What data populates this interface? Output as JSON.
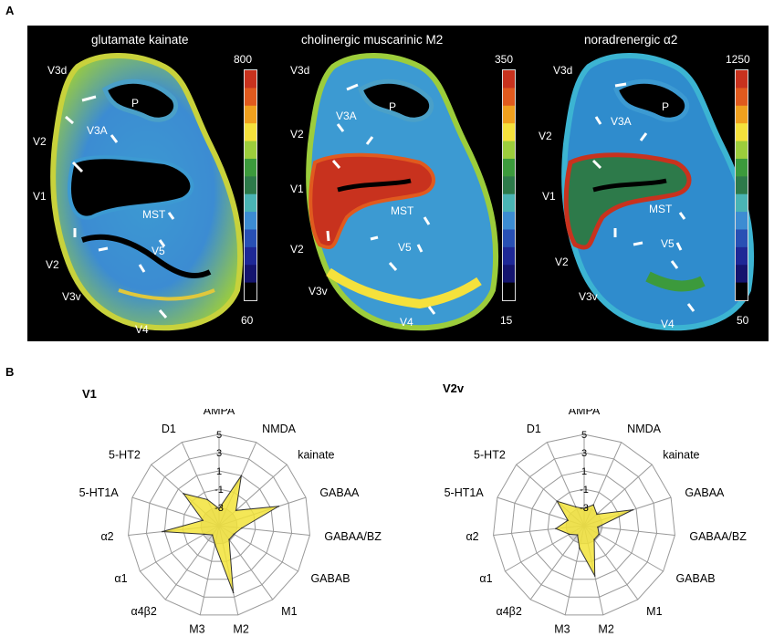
{
  "panel_a": {
    "letter": "A",
    "sections": [
      {
        "title": "glutamate kainate",
        "scale_max": "800",
        "scale_min": "60",
        "labels": [
          "V3d",
          "V2",
          "V3A",
          "P",
          "V1",
          "MST",
          "V5",
          "V2",
          "V3v",
          "V4"
        ]
      },
      {
        "title": "cholinergic muscarinic M2",
        "scale_max": "350",
        "scale_min": "15",
        "labels": [
          "V3d",
          "V2",
          "V3A",
          "P",
          "V1",
          "MST",
          "V5",
          "V2",
          "V3v",
          "V4"
        ]
      },
      {
        "title": "noradrenergic α2",
        "scale_max": "1250",
        "scale_min": "50",
        "labels": [
          "V3d",
          "V2",
          "V3A",
          "P",
          "V1",
          "MST",
          "V5",
          "V2",
          "V3v",
          "V4"
        ]
      }
    ],
    "colorbar_colors": [
      "#c8321e",
      "#e05a1e",
      "#f0a01e",
      "#f5e13c",
      "#9ccd3c",
      "#3c9a3c",
      "#2d7a4a",
      "#4ab4b4",
      "#3c8cd2",
      "#2850b4",
      "#1e2896",
      "#14146e",
      "#000000"
    ]
  },
  "panel_b": {
    "letter": "B",
    "axis_labels": [
      "AMPA",
      "NMDA",
      "kainate",
      "GABAA",
      "GABAA/BZ",
      "GABAB",
      "M1",
      "M2",
      "M3",
      "α4β2",
      "α1",
      "α2",
      "5-HT1A",
      "5-HT2",
      "D1"
    ],
    "ring_labels": [
      "5",
      "3",
      "1",
      "-1",
      "-3"
    ],
    "chart_data": [
      {
        "type": "radar",
        "title": "V1",
        "categories": [
          "AMPA",
          "NMDA",
          "kainate",
          "GABAA",
          "GABAA/BZ",
          "GABAB",
          "M1",
          "M2",
          "M3",
          "α4β2",
          "α1",
          "α2",
          "5-HT1A",
          "5-HT2",
          "D1"
        ],
        "rlim": [
          -3,
          5
        ],
        "values": [
          -1.5,
          1.8,
          -1.0,
          2.5,
          -1.0,
          -1.5,
          -1.5,
          3.0,
          -1.3,
          -2.0,
          -1.5,
          2.0,
          -1.5,
          1.2,
          -0.5
        ]
      },
      {
        "type": "radar",
        "title": "V2v",
        "categories": [
          "AMPA",
          "NMDA",
          "kainate",
          "GABAA",
          "GABAA/BZ",
          "GABAB",
          "M1",
          "M2",
          "M3",
          "α4β2",
          "α1",
          "α2",
          "5-HT1A",
          "5-HT2",
          "D1"
        ],
        "rlim": [
          -3,
          5
        ],
        "values": [
          -1.5,
          -1.0,
          -1.5,
          1.5,
          -1.8,
          -1.5,
          -1.5,
          1.5,
          -1.0,
          -2.0,
          -1.5,
          -0.5,
          -1.5,
          0.2,
          -1.2
        ]
      }
    ]
  }
}
